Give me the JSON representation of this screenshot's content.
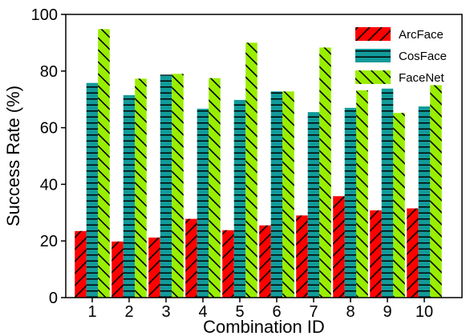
{
  "chart_data": {
    "type": "bar",
    "title": "",
    "xlabel": "Combination ID",
    "ylabel": "Success Rate (%)",
    "ylim": [
      0,
      100
    ],
    "yticks": [
      0,
      20,
      40,
      60,
      80,
      100
    ],
    "categories": [
      "1",
      "2",
      "3",
      "4",
      "5",
      "6",
      "7",
      "8",
      "9",
      "10"
    ],
    "grid": false,
    "legend_position": "top-right",
    "series": [
      {
        "name": "ArcFace",
        "color": "#ff0000",
        "hatch": "forward-diagonal",
        "values": [
          23.5,
          19.8,
          21.2,
          27.8,
          23.8,
          25.5,
          29.0,
          35.8,
          30.8,
          31.5
        ]
      },
      {
        "name": "CosFace",
        "color": "#139a9a",
        "hatch": "horizontal",
        "values": [
          75.8,
          71.5,
          78.7,
          66.7,
          69.8,
          72.8,
          65.5,
          67.0,
          73.8,
          67.5
        ]
      },
      {
        "name": "FaceNet",
        "color": "#99ee00",
        "hatch": "back-diagonal",
        "values": [
          94.8,
          77.3,
          79.0,
          77.5,
          90.0,
          72.8,
          88.3,
          73.2,
          65.2,
          75.0
        ]
      }
    ]
  }
}
